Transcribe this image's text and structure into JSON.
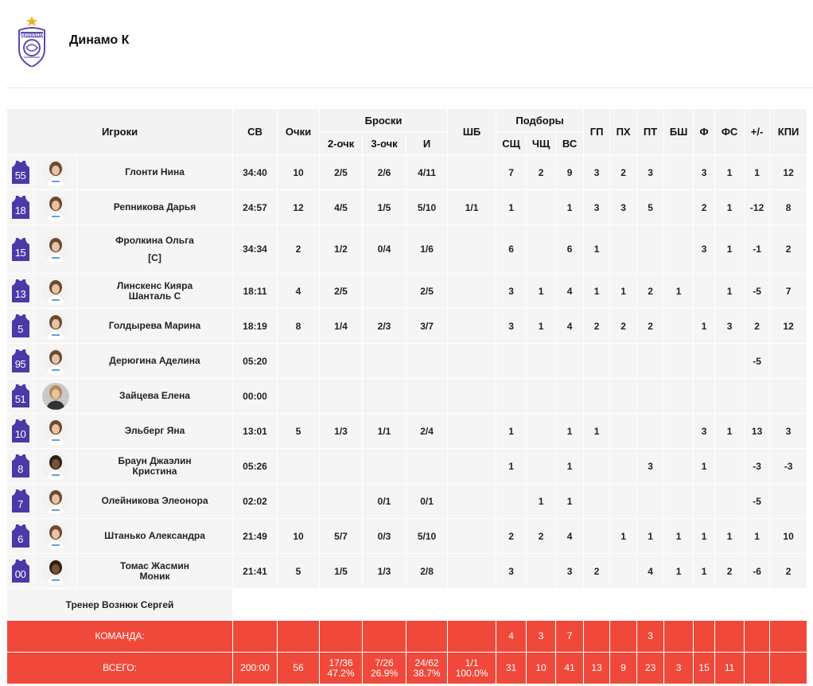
{
  "team": {
    "name": "Динамо К",
    "logo_text": "ДИНАМО"
  },
  "headers": {
    "players": "Игроки",
    "sv": "СВ",
    "points": "Очки",
    "shots": "Броски",
    "two": "2-очк",
    "three": "3-очк",
    "i": "И",
    "shb": "ШБ",
    "rebounds": "Подборы",
    "ssh": "СЩ",
    "chsh": "ЧЩ",
    "vs": "ВС",
    "gp": "ГП",
    "px": "ПХ",
    "pt": "ПТ",
    "bsh": "БШ",
    "f": "Ф",
    "fs": "ФС",
    "pm": "+/-",
    "kpi": "КПИ"
  },
  "players": [
    {
      "num": "55",
      "name": "Глонти Нина",
      "sv": "34:40",
      "pts": "10",
      "two": "2/5",
      "three": "2/6",
      "i": "4/11",
      "shb": "",
      "ssh": "7",
      "chsh": "2",
      "vs": "9",
      "gp": "3",
      "px": "2",
      "pt": "3",
      "bsh": "",
      "f": "3",
      "fs": "1",
      "pm": "1",
      "kpi": "12"
    },
    {
      "num": "18",
      "name": "Репникова Дарья",
      "sv": "24:57",
      "pts": "12",
      "two": "4/5",
      "three": "1/5",
      "i": "5/10",
      "shb": "1/1",
      "ssh": "1",
      "chsh": "",
      "vs": "1",
      "gp": "3",
      "px": "3",
      "pt": "5",
      "bsh": "",
      "f": "2",
      "fs": "1",
      "pm": "-12",
      "kpi": "8"
    },
    {
      "num": "15",
      "name": "Фролкина Ольга",
      "captain": "[C]",
      "sv": "34:34",
      "pts": "2",
      "two": "1/2",
      "three": "0/4",
      "i": "1/6",
      "shb": "",
      "ssh": "6",
      "chsh": "",
      "vs": "6",
      "gp": "1",
      "px": "",
      "pt": "",
      "bsh": "",
      "f": "3",
      "fs": "1",
      "pm": "-1",
      "kpi": "2"
    },
    {
      "num": "13",
      "name": "Линскенс Кияра Шанталь С",
      "sv": "18:11",
      "pts": "4",
      "two": "2/5",
      "three": "",
      "i": "2/5",
      "shb": "",
      "ssh": "3",
      "chsh": "1",
      "vs": "4",
      "gp": "1",
      "px": "1",
      "pt": "2",
      "bsh": "1",
      "f": "",
      "fs": "1",
      "pm": "-5",
      "kpi": "7"
    },
    {
      "num": "5",
      "name": "Голдырева Марина",
      "sv": "18:19",
      "pts": "8",
      "two": "1/4",
      "three": "2/3",
      "i": "3/7",
      "shb": "",
      "ssh": "3",
      "chsh": "1",
      "vs": "4",
      "gp": "2",
      "px": "2",
      "pt": "2",
      "bsh": "",
      "f": "1",
      "fs": "3",
      "pm": "2",
      "kpi": "12"
    },
    {
      "num": "95",
      "name": "Дерюгина Аделина",
      "sv": "05:20",
      "pts": "",
      "two": "",
      "three": "",
      "i": "",
      "shb": "",
      "ssh": "",
      "chsh": "",
      "vs": "",
      "gp": "",
      "px": "",
      "pt": "",
      "bsh": "",
      "f": "",
      "fs": "",
      "pm": "-5",
      "kpi": ""
    },
    {
      "num": "51",
      "name": "Зайцева Елена",
      "sv": "00:00",
      "pts": "",
      "two": "",
      "three": "",
      "i": "",
      "shb": "",
      "ssh": "",
      "chsh": "",
      "vs": "",
      "gp": "",
      "px": "",
      "pt": "",
      "bsh": "",
      "f": "",
      "fs": "",
      "pm": "",
      "kpi": ""
    },
    {
      "num": "10",
      "name": "Эльберг Яна",
      "sv": "13:01",
      "pts": "5",
      "two": "1/3",
      "three": "1/1",
      "i": "2/4",
      "shb": "",
      "ssh": "1",
      "chsh": "",
      "vs": "1",
      "gp": "1",
      "px": "",
      "pt": "",
      "bsh": "",
      "f": "3",
      "fs": "1",
      "pm": "13",
      "kpi": "3"
    },
    {
      "num": "8",
      "name": "Браун Джаэлин Кристина",
      "sv": "05:26",
      "pts": "",
      "two": "",
      "three": "",
      "i": "",
      "shb": "",
      "ssh": "1",
      "chsh": "",
      "vs": "1",
      "gp": "",
      "px": "",
      "pt": "3",
      "bsh": "",
      "f": "1",
      "fs": "",
      "pm": "-3",
      "kpi": "-3"
    },
    {
      "num": "7",
      "name": "Олейникова Элеонора",
      "sv": "02:02",
      "pts": "",
      "two": "",
      "three": "0/1",
      "i": "0/1",
      "shb": "",
      "ssh": "",
      "chsh": "1",
      "vs": "1",
      "gp": "",
      "px": "",
      "pt": "",
      "bsh": "",
      "f": "",
      "fs": "",
      "pm": "-5",
      "kpi": ""
    },
    {
      "num": "6",
      "name": "Штанько Александра",
      "sv": "21:49",
      "pts": "10",
      "two": "5/7",
      "three": "0/3",
      "i": "5/10",
      "shb": "",
      "ssh": "2",
      "chsh": "2",
      "vs": "4",
      "gp": "",
      "px": "1",
      "pt": "1",
      "bsh": "1",
      "f": "1",
      "fs": "1",
      "pm": "1",
      "kpi": "10"
    },
    {
      "num": "00",
      "name": "Томас Жасмин Моник",
      "sv": "21:41",
      "pts": "5",
      "two": "1/5",
      "three": "1/3",
      "i": "2/8",
      "shb": "",
      "ssh": "3",
      "chsh": "",
      "vs": "3",
      "gp": "2",
      "px": "",
      "pt": "4",
      "bsh": "1",
      "f": "1",
      "fs": "2",
      "pm": "-6",
      "kpi": "2"
    }
  ],
  "coach": "Тренер Вознюк Сергей",
  "team_row": {
    "label": "КОМАНДА:",
    "ssh": "4",
    "chsh": "3",
    "vs": "7",
    "pt": "3"
  },
  "total_row": {
    "label": "ВСЕГО:",
    "sv": "200:00",
    "pts": "56",
    "two": "17/36",
    "two_pct": "47.2%",
    "three": "7/26",
    "three_pct": "26.9%",
    "i": "24/62",
    "i_pct": "38.7%",
    "shb": "1/1",
    "shb_pct": "100.0%",
    "ssh": "31",
    "chsh": "10",
    "vs": "41",
    "gp": "13",
    "px": "9",
    "pt": "23",
    "bsh": "3",
    "f": "15",
    "fs": "11"
  },
  "colors": {
    "accent": "#f0493b",
    "jersey": "#4a3aa8",
    "row_bg": "#f5f5f5",
    "header_bg": "#f3f3f3"
  }
}
